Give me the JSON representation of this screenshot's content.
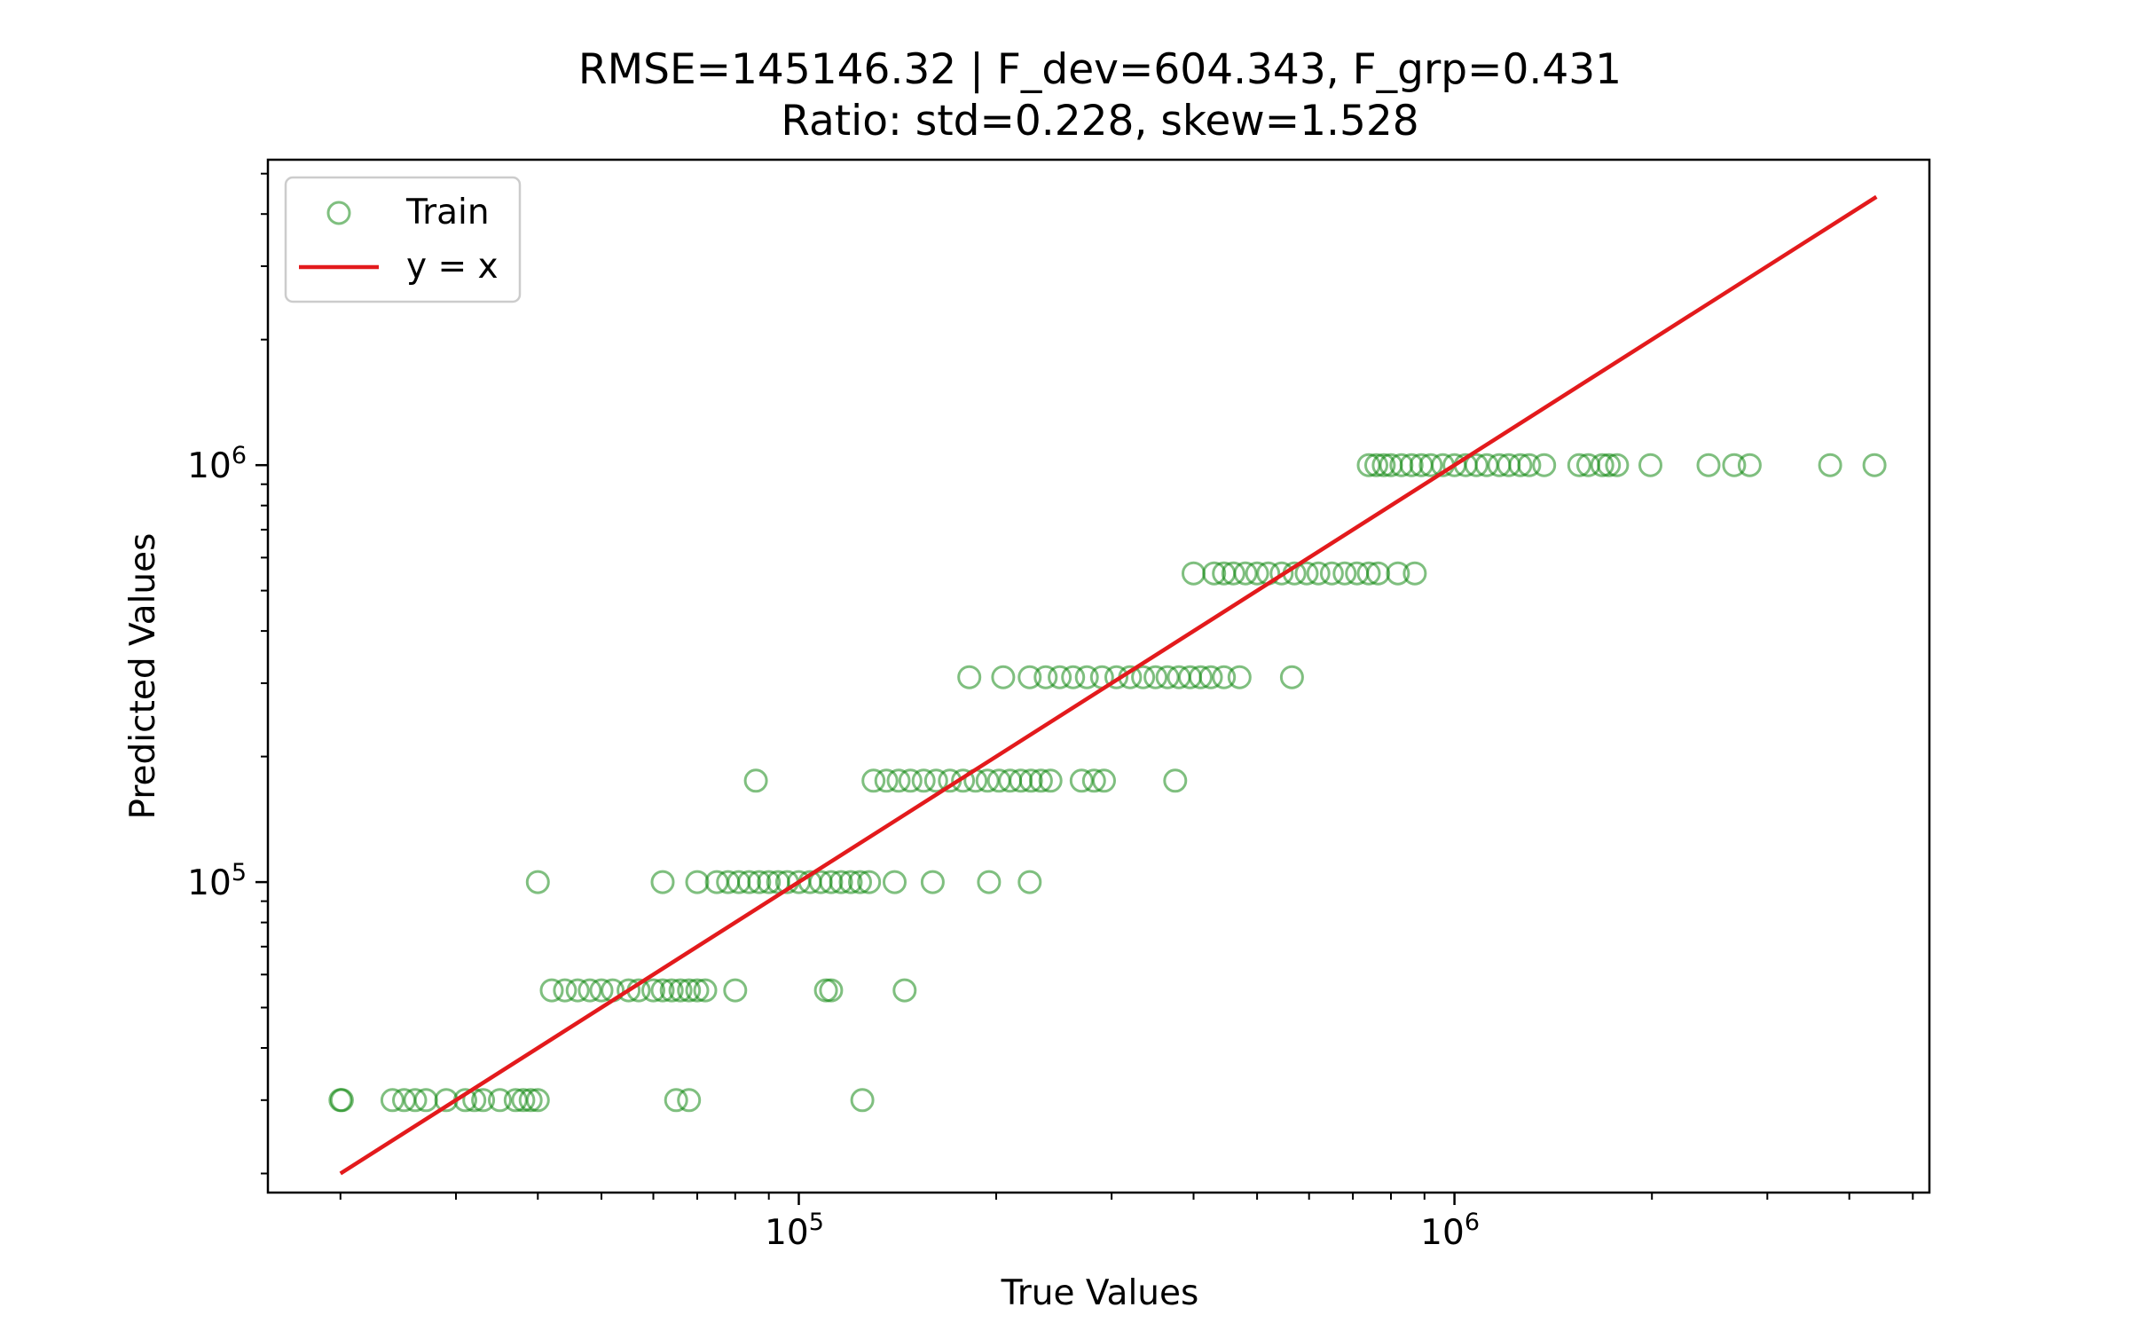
{
  "chart_data": {
    "type": "scatter",
    "title": "RMSE=145146.32 | F_dev=604.343, F_grp=0.431",
    "subtitle": "Ratio: std=0.228, skew=1.528",
    "xlabel": "True Values",
    "ylabel": "Predicted Values",
    "xscale": "log",
    "yscale": "log",
    "xlim": [
      15500,
      5300000
    ],
    "ylim": [
      18000,
      5400000
    ],
    "xticks": [
      {
        "value": 100000,
        "base": "10",
        "exp": "5"
      },
      {
        "value": 1000000,
        "base": "10",
        "exp": "6"
      }
    ],
    "yticks": [
      {
        "value": 100000,
        "base": "10",
        "exp": "5"
      },
      {
        "value": 1000000,
        "base": "10",
        "exp": "6"
      }
    ],
    "grid": false,
    "legend_position": "upper-left",
    "legend": [
      {
        "label": "Train",
        "marker": "open-circle",
        "color": "#008000"
      },
      {
        "label": "y = x",
        "marker": "line",
        "color": "#e31a1c"
      }
    ],
    "colors": {
      "train": "#008000",
      "identity": "#e31a1c"
    },
    "series": [
      {
        "name": "Train",
        "kind": "scatter",
        "points": [
          [
            20000,
            30000
          ],
          [
            20100,
            30000
          ],
          [
            24000,
            30000
          ],
          [
            25000,
            30000
          ],
          [
            26000,
            30000
          ],
          [
            27000,
            30000
          ],
          [
            29000,
            30000
          ],
          [
            31000,
            30000
          ],
          [
            32000,
            30000
          ],
          [
            33000,
            30000
          ],
          [
            35000,
            30000
          ],
          [
            37000,
            30000
          ],
          [
            38000,
            30000
          ],
          [
            39000,
            30000
          ],
          [
            40000,
            30000
          ],
          [
            65000,
            30000
          ],
          [
            68000,
            30000
          ],
          [
            125000,
            30000
          ],
          [
            42000,
            55000
          ],
          [
            44000,
            55000
          ],
          [
            46000,
            55000
          ],
          [
            48000,
            55000
          ],
          [
            50000,
            55000
          ],
          [
            52000,
            55000
          ],
          [
            55000,
            55000
          ],
          [
            57000,
            55000
          ],
          [
            60000,
            55000
          ],
          [
            62000,
            55000
          ],
          [
            64000,
            55000
          ],
          [
            66000,
            55000
          ],
          [
            68000,
            55000
          ],
          [
            70000,
            55000
          ],
          [
            72000,
            55000
          ],
          [
            80000,
            55000
          ],
          [
            110000,
            55000
          ],
          [
            112000,
            55000
          ],
          [
            145000,
            55000
          ],
          [
            40000,
            100000
          ],
          [
            62000,
            100000
          ],
          [
            70000,
            100000
          ],
          [
            75000,
            100000
          ],
          [
            78000,
            100000
          ],
          [
            81000,
            100000
          ],
          [
            84000,
            100000
          ],
          [
            87000,
            100000
          ],
          [
            90000,
            100000
          ],
          [
            93000,
            100000
          ],
          [
            96000,
            100000
          ],
          [
            100000,
            100000
          ],
          [
            104000,
            100000
          ],
          [
            108000,
            100000
          ],
          [
            112000,
            100000
          ],
          [
            116000,
            100000
          ],
          [
            120000,
            100000
          ],
          [
            124000,
            100000
          ],
          [
            128000,
            100000
          ],
          [
            140000,
            100000
          ],
          [
            160000,
            100000
          ],
          [
            195000,
            100000
          ],
          [
            225000,
            100000
          ],
          [
            86000,
            175000
          ],
          [
            130000,
            175000
          ],
          [
            136000,
            175000
          ],
          [
            142000,
            175000
          ],
          [
            148000,
            175000
          ],
          [
            155000,
            175000
          ],
          [
            162000,
            175000
          ],
          [
            170000,
            175000
          ],
          [
            178000,
            175000
          ],
          [
            186000,
            175000
          ],
          [
            194000,
            175000
          ],
          [
            202000,
            175000
          ],
          [
            210000,
            175000
          ],
          [
            218000,
            175000
          ],
          [
            226000,
            175000
          ],
          [
            234000,
            175000
          ],
          [
            242000,
            175000
          ],
          [
            270000,
            175000
          ],
          [
            282000,
            175000
          ],
          [
            292000,
            175000
          ],
          [
            375000,
            175000
          ],
          [
            182000,
            310000
          ],
          [
            205000,
            310000
          ],
          [
            225000,
            310000
          ],
          [
            238000,
            310000
          ],
          [
            250000,
            310000
          ],
          [
            262000,
            310000
          ],
          [
            275000,
            310000
          ],
          [
            290000,
            310000
          ],
          [
            305000,
            310000
          ],
          [
            320000,
            310000
          ],
          [
            335000,
            310000
          ],
          [
            350000,
            310000
          ],
          [
            365000,
            310000
          ],
          [
            380000,
            310000
          ],
          [
            395000,
            310000
          ],
          [
            410000,
            310000
          ],
          [
            425000,
            310000
          ],
          [
            445000,
            310000
          ],
          [
            470000,
            310000
          ],
          [
            565000,
            310000
          ],
          [
            400000,
            550000
          ],
          [
            430000,
            550000
          ],
          [
            445000,
            550000
          ],
          [
            460000,
            550000
          ],
          [
            480000,
            550000
          ],
          [
            500000,
            550000
          ],
          [
            520000,
            550000
          ],
          [
            545000,
            550000
          ],
          [
            570000,
            550000
          ],
          [
            595000,
            550000
          ],
          [
            620000,
            550000
          ],
          [
            650000,
            550000
          ],
          [
            680000,
            550000
          ],
          [
            710000,
            550000
          ],
          [
            740000,
            550000
          ],
          [
            765000,
            550000
          ],
          [
            820000,
            550000
          ],
          [
            870000,
            550000
          ],
          [
            740000,
            1000000
          ],
          [
            760000,
            1000000
          ],
          [
            780000,
            1000000
          ],
          [
            800000,
            1000000
          ],
          [
            830000,
            1000000
          ],
          [
            860000,
            1000000
          ],
          [
            890000,
            1000000
          ],
          [
            920000,
            1000000
          ],
          [
            960000,
            1000000
          ],
          [
            1000000,
            1000000
          ],
          [
            1040000,
            1000000
          ],
          [
            1080000,
            1000000
          ],
          [
            1120000,
            1000000
          ],
          [
            1170000,
            1000000
          ],
          [
            1210000,
            1000000
          ],
          [
            1260000,
            1000000
          ],
          [
            1300000,
            1000000
          ],
          [
            1370000,
            1000000
          ],
          [
            1550000,
            1000000
          ],
          [
            1600000,
            1000000
          ],
          [
            1680000,
            1000000
          ],
          [
            1720000,
            1000000
          ],
          [
            1770000,
            1000000
          ],
          [
            1990000,
            1000000
          ],
          [
            2440000,
            1000000
          ],
          [
            2670000,
            1000000
          ],
          [
            2820000,
            1000000
          ],
          [
            3740000,
            1000000
          ],
          [
            4370000,
            1000000
          ]
        ]
      },
      {
        "name": "y = x",
        "kind": "line",
        "points": [
          [
            20000,
            20000
          ],
          [
            4400000,
            4400000
          ]
        ]
      }
    ]
  }
}
